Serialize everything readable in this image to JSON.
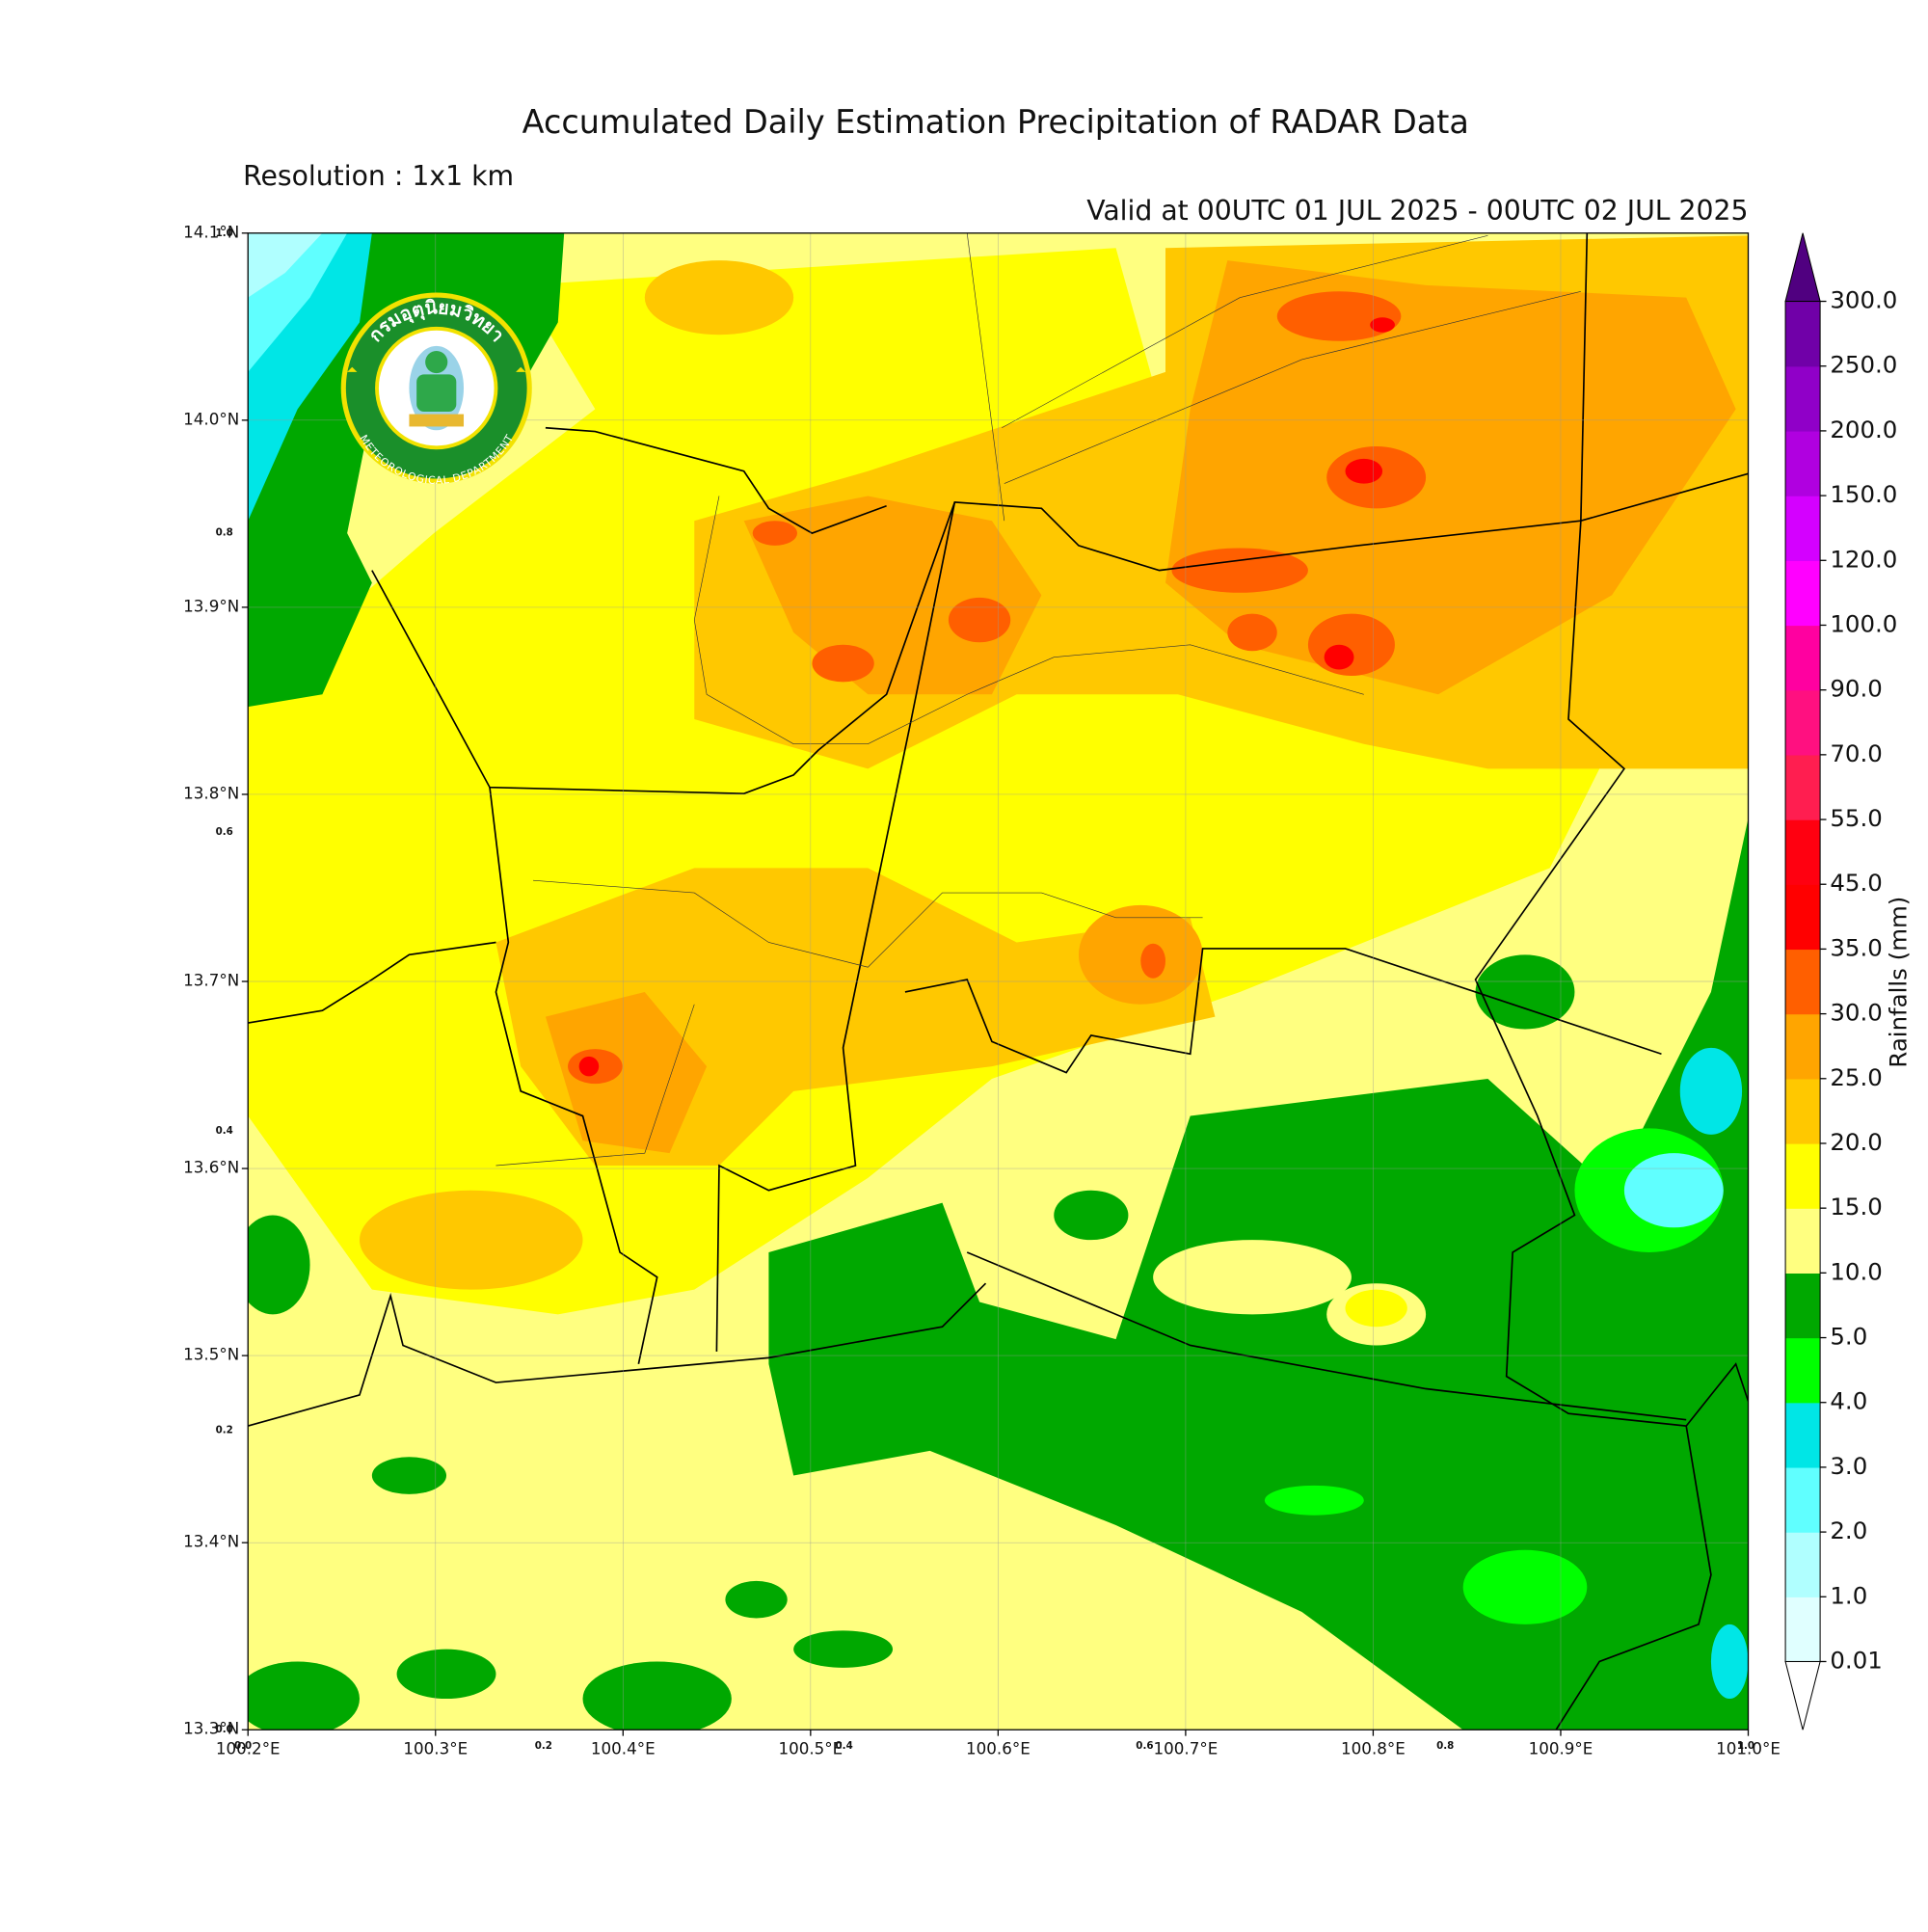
{
  "title": "Accumulated Daily Estimation Precipitation of RADAR Data",
  "resolution": "Resolution : 1x1 km",
  "valid": "Valid at 00UTC 01 JUL 2025 - 00UTC 02 JUL 2025",
  "map": {
    "x_ticks": [
      "100.2°E",
      "100.3°E",
      "100.4°E",
      "100.5°E",
      "100.6°E",
      "100.7°E",
      "100.8°E",
      "100.9°E",
      "101.0°E"
    ],
    "y_ticks": [
      "13.3°N",
      "13.4°N",
      "13.5°N",
      "13.6°N",
      "13.7°N",
      "13.8°N",
      "13.9°N",
      "14.0°N",
      "14.1°N"
    ],
    "x_overlay_ticks": [
      "0.0",
      "0.2",
      "0.4",
      "0.6",
      "0.8",
      "1.0"
    ],
    "y_overlay_ticks": [
      "0.0",
      "0.2",
      "0.4",
      "0.6",
      "0.8",
      "1.0"
    ]
  },
  "logo": {
    "thai_name": "กรมอุตุนิยมวิทยา",
    "english_name": "METEOROLOGICAL DEPARTMENT"
  },
  "colorbar": {
    "label": "Rainfalls (mm)",
    "levels": [
      "0.01",
      "1.0",
      "2.0",
      "3.0",
      "4.0",
      "5.0",
      "10.0",
      "15.0",
      "20.0",
      "25.0",
      "30.0",
      "35.0",
      "45.0",
      "55.0",
      "70.0",
      "90.0",
      "100.0",
      "120.0",
      "150.0",
      "200.0",
      "250.0",
      "300.0"
    ],
    "colors": [
      "#e0ffff",
      "#b0ffff",
      "#60ffff",
      "#00e6e6",
      "#00ff00",
      "#00a800",
      "#ffff80",
      "#ffff00",
      "#ffc800",
      "#ffa500",
      "#ff5f00",
      "#ff0000",
      "#ff0010",
      "#ff1e50",
      "#ff1080",
      "#ff00a0",
      "#ff00ff",
      "#d400ff",
      "#b000e0",
      "#9000c8",
      "#7000a8"
    ],
    "extend_max_color": "#500080",
    "extend_min_color": "#ffffff"
  }
}
